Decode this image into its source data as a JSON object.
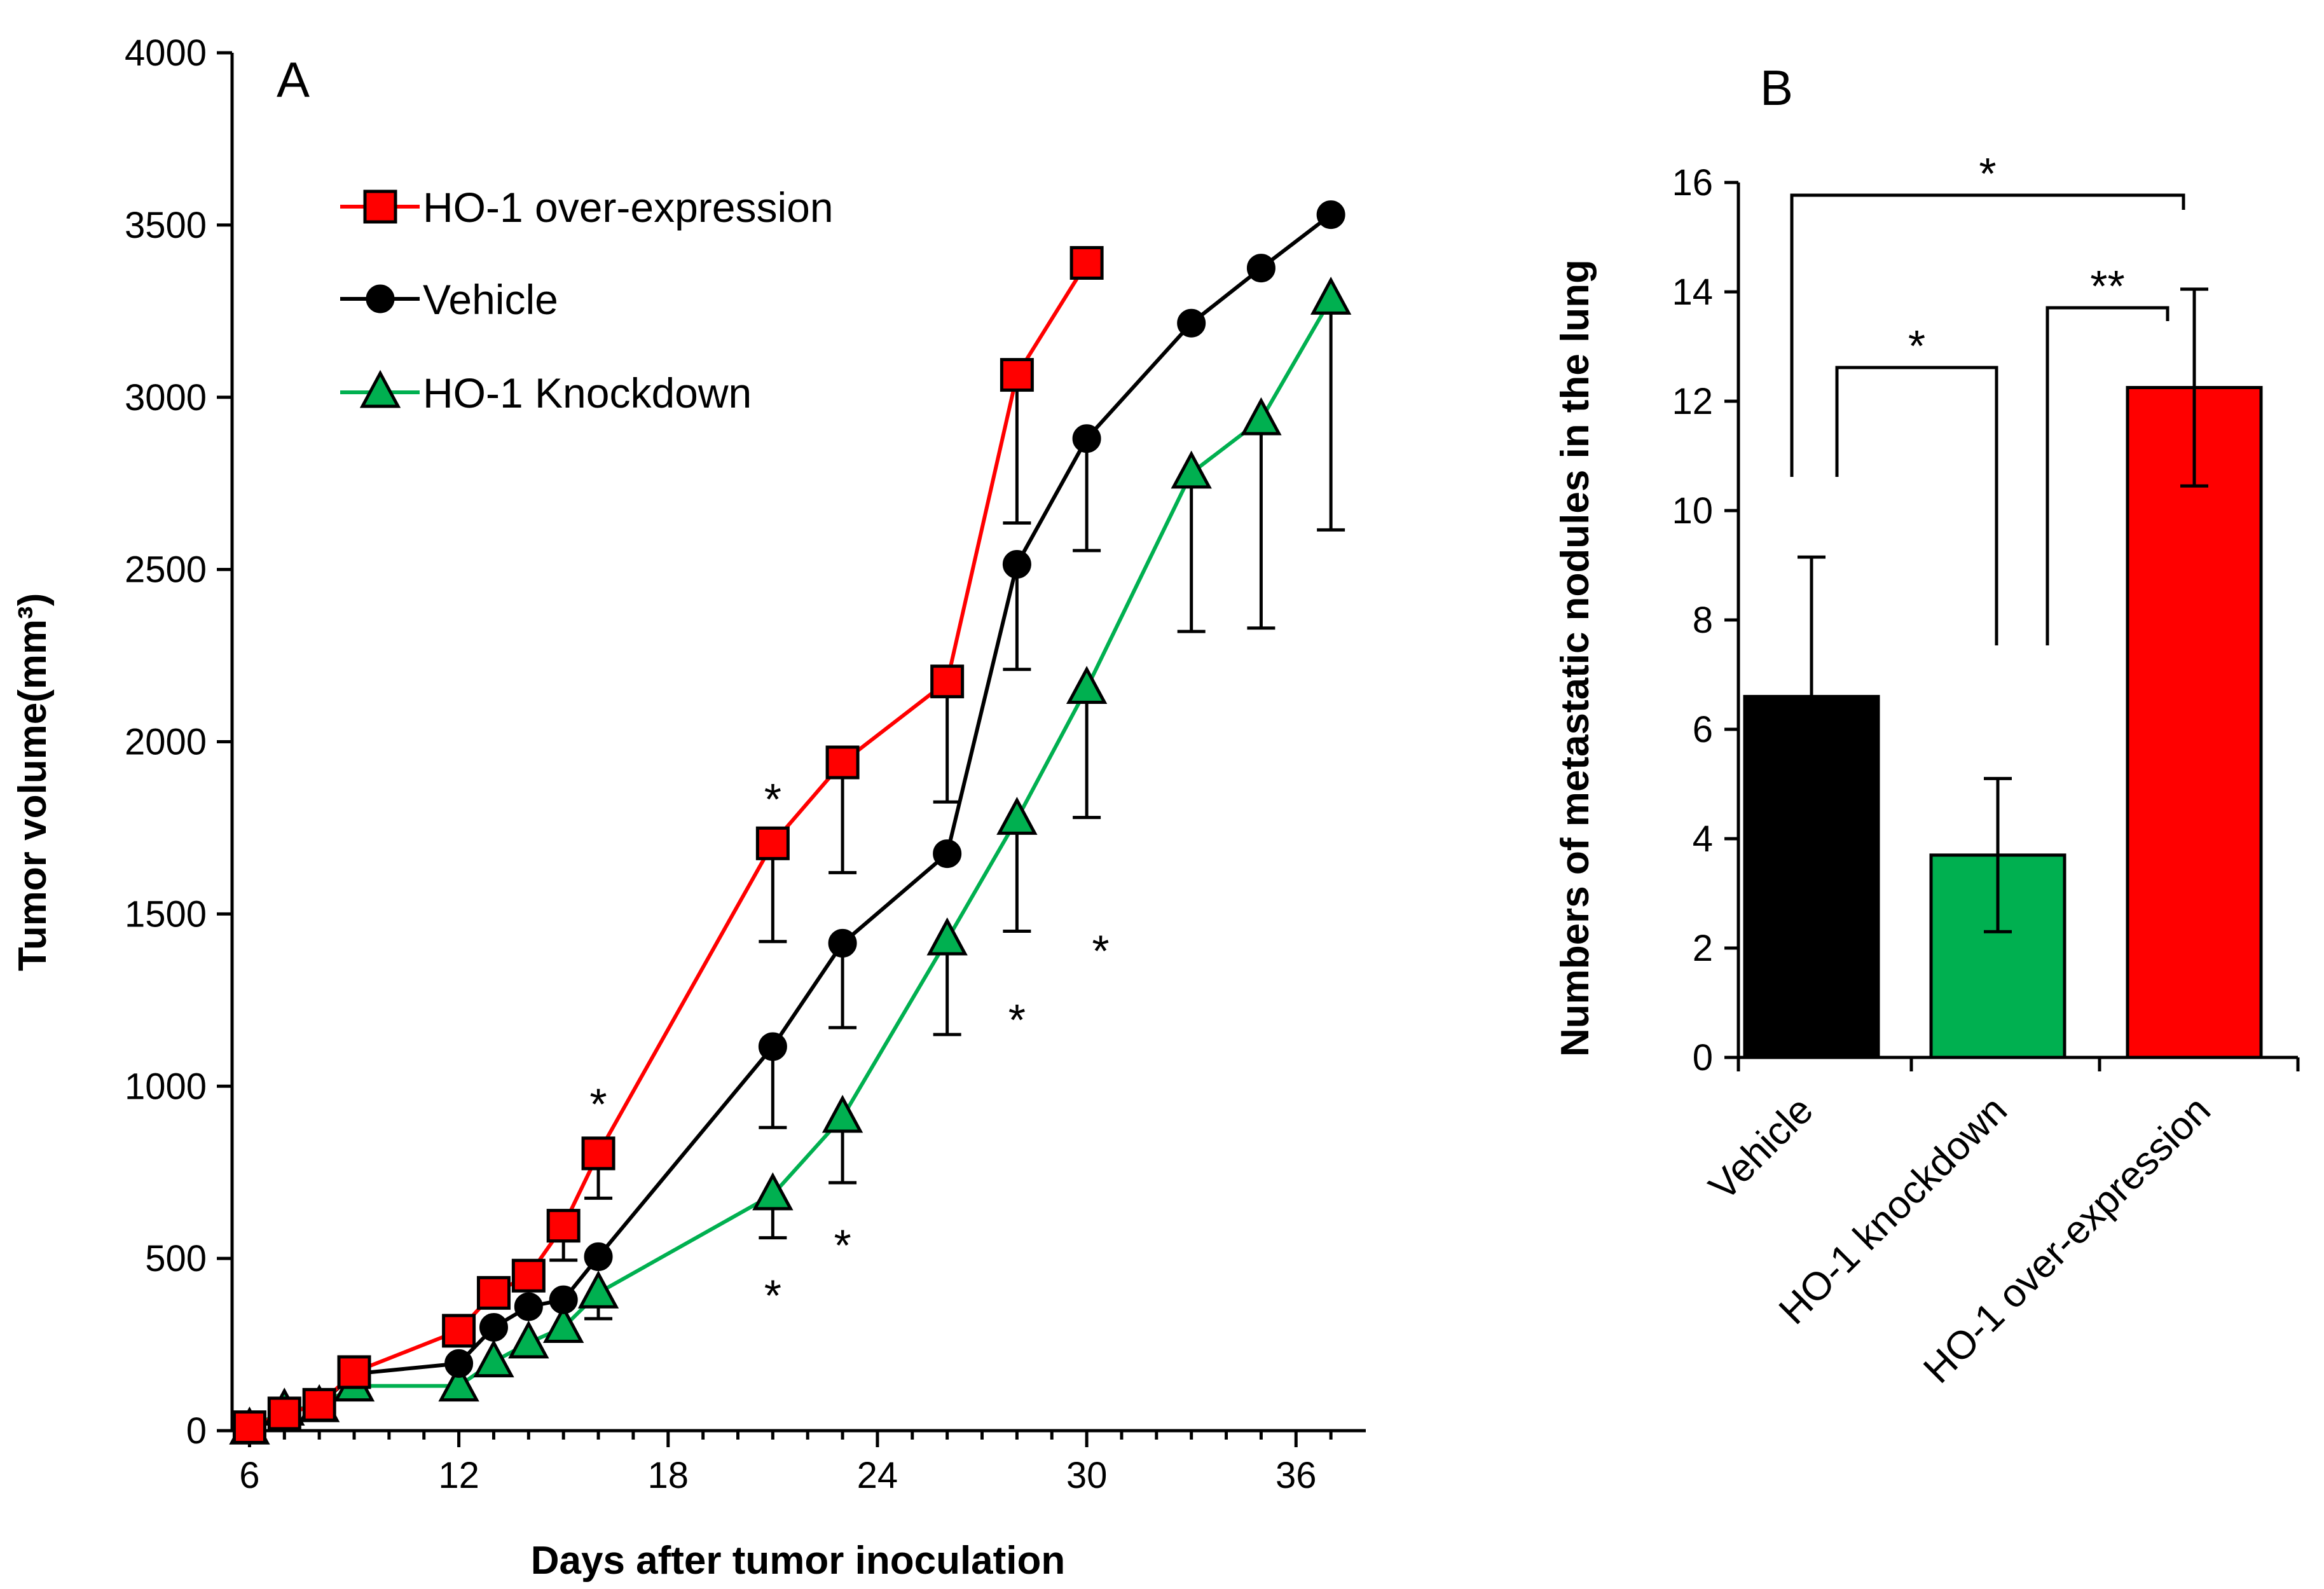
{
  "chart_data": [
    {
      "type": "line",
      "panel": "A",
      "xlabel": "Days after tumor inoculation",
      "ylabel": "Tumor volume(mm³)",
      "xlim": [
        5.5,
        38
      ],
      "ylim": [
        0,
        4000
      ],
      "xticks": [
        6,
        12,
        18,
        24,
        30,
        36
      ],
      "yticks": [
        0,
        500,
        1000,
        1500,
        2000,
        2500,
        3000,
        3500,
        4000
      ],
      "legend": "top-left",
      "series": [
        {
          "name": "HO-1 over-expression",
          "color": "#ff0000",
          "marker": "square",
          "x": [
            6,
            7,
            8,
            9,
            12,
            13,
            14,
            15,
            16,
            21,
            23,
            26,
            28,
            30
          ],
          "y": [
            10,
            50,
            75,
            170,
            290,
            400,
            450,
            595,
            805,
            1705,
            1940,
            2175,
            3065,
            3390
          ],
          "err": [
            0,
            0,
            0,
            0,
            0,
            0,
            0,
            100,
            130,
            285,
            320,
            350,
            430,
            0
          ]
        },
        {
          "name": "Vehicle",
          "color": "#000000",
          "marker": "circle",
          "x": [
            6,
            7,
            8,
            9,
            12,
            13,
            14,
            15,
            16,
            21,
            23,
            26,
            28,
            30,
            33,
            35,
            37
          ],
          "y": [
            10,
            50,
            75,
            165,
            195,
            300,
            360,
            380,
            505,
            1115,
            1415,
            1675,
            2515,
            2880,
            3215,
            3375,
            3530
          ],
          "err": [
            0,
            0,
            0,
            0,
            0,
            0,
            0,
            0,
            0,
            235,
            245,
            0,
            305,
            325,
            0,
            0,
            0
          ]
        },
        {
          "name": "HO-1 Knockdown",
          "color": "#00b050",
          "marker": "triangle",
          "x": [
            6,
            7,
            8,
            9,
            12,
            13,
            14,
            15,
            16,
            21,
            23,
            26,
            28,
            30,
            33,
            35,
            37
          ],
          "y": [
            5,
            60,
            70,
            130,
            130,
            200,
            255,
            300,
            400,
            685,
            910,
            1425,
            1775,
            2155,
            2780,
            2935,
            3285
          ],
          "err": [
            0,
            0,
            0,
            0,
            0,
            0,
            0,
            0,
            75,
            125,
            190,
            275,
            325,
            375,
            460,
            605,
            670
          ]
        }
      ],
      "annotations": [
        {
          "text": "*",
          "x": 16,
          "y": 955
        },
        {
          "text": "*",
          "x": 21,
          "y": 1840
        },
        {
          "text": "*",
          "x": 21,
          "y": 400
        },
        {
          "text": "*",
          "x": 23,
          "y": 545
        },
        {
          "text": "*",
          "x": 28,
          "y": 1200
        },
        {
          "text": "*",
          "x": 30.4,
          "y": 1400
        }
      ]
    },
    {
      "type": "bar",
      "panel": "B",
      "ylabel": "Numbers of metastatic nodules in the lung",
      "ylim": [
        0,
        16
      ],
      "yticks": [
        0,
        2,
        4,
        6,
        8,
        10,
        12,
        14,
        16
      ],
      "categories": [
        "Vehicle",
        "HO-1 knockdown",
        "HO-1 over-expression"
      ],
      "values": [
        6.6,
        3.7,
        12.25
      ],
      "errors": [
        2.55,
        1.4,
        1.8
      ],
      "colors": [
        "#000000",
        "#00b050",
        "#ff0000"
      ],
      "significance": [
        {
          "pair": [
            0,
            2
          ],
          "label": "*"
        },
        {
          "pair": [
            0,
            1
          ],
          "label": "*"
        },
        {
          "pair": [
            1,
            2
          ],
          "label": "**"
        }
      ]
    }
  ]
}
